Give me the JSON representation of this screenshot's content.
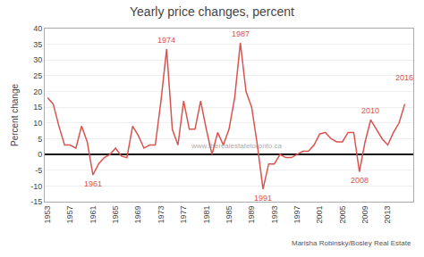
{
  "chart_data": {
    "type": "line",
    "title": "Yearly price changes, percent",
    "ylabel": "Percent change",
    "credit": "Marisha Robinsky/Bosley Real Estate",
    "watermark": "www.therealestatetoronto.ca",
    "color": "#d9534f",
    "grid": true,
    "x": [
      1953,
      1954,
      1955,
      1956,
      1957,
      1958,
      1959,
      1960,
      1961,
      1962,
      1963,
      1964,
      1965,
      1966,
      1967,
      1968,
      1969,
      1970,
      1971,
      1972,
      1973,
      1974,
      1975,
      1976,
      1977,
      1978,
      1979,
      1980,
      1981,
      1982,
      1983,
      1984,
      1985,
      1986,
      1987,
      1988,
      1989,
      1990,
      1991,
      1992,
      1993,
      1994,
      1995,
      1996,
      1997,
      1998,
      1999,
      2000,
      2001,
      2002,
      2003,
      2004,
      2005,
      2006,
      2007,
      2008,
      2009,
      2010,
      2011,
      2012,
      2013,
      2014,
      2015,
      2016
    ],
    "values": [
      18,
      16,
      9,
      3,
      3,
      2,
      9,
      4,
      -6.5,
      -3,
      -1,
      0,
      2,
      -0.5,
      -1,
      9,
      6,
      2,
      3,
      3,
      17,
      33.5,
      8,
      3,
      17,
      8,
      8,
      17,
      8,
      0,
      7,
      3,
      8,
      18,
      35.5,
      20,
      15,
      3,
      -11,
      -3,
      -3,
      0,
      -1,
      -1,
      0,
      1,
      1,
      3,
      6.5,
      7,
      5,
      4,
      4,
      7,
      7,
      -5.5,
      4,
      11,
      8,
      5,
      3,
      7,
      10,
      16
    ],
    "xlim": [
      1952.5,
      2017.5
    ],
    "xticks": [
      1953,
      1957,
      1961,
      1965,
      1969,
      1973,
      1977,
      1981,
      1985,
      1989,
      1993,
      1997,
      2001,
      2005,
      2009,
      2013
    ],
    "ylim": [
      -15,
      40
    ],
    "yticks": [
      -15,
      -10,
      -5,
      0,
      5,
      10,
      15,
      20,
      25,
      30,
      35,
      40
    ],
    "annotations": [
      {
        "text": "1961",
        "x": 1961,
        "y": -6.5,
        "position": "below"
      },
      {
        "text": "1974",
        "x": 1974,
        "y": 33.5,
        "position": "above"
      },
      {
        "text": "1987",
        "x": 1987,
        "y": 35.5,
        "position": "above"
      },
      {
        "text": "1991",
        "x": 1991,
        "y": -11.0,
        "position": "below"
      },
      {
        "text": "2008",
        "x": 2008,
        "y": -5.5,
        "position": "below"
      },
      {
        "text": "2010",
        "x": 2010,
        "y": 11.0,
        "position": "above"
      },
      {
        "text": "2016",
        "x": 2016,
        "y": 21.5,
        "position": "above"
      }
    ]
  }
}
